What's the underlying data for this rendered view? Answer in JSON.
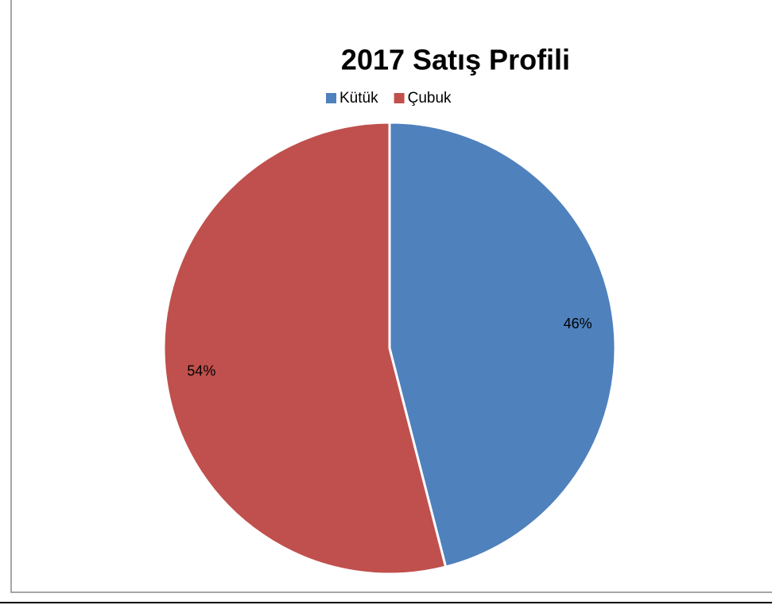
{
  "chart_data": {
    "type": "pie",
    "title": "2017 Satış Profili",
    "categories": [
      "Kütük",
      "Çubuk"
    ],
    "values": [
      46,
      54
    ],
    "value_labels": [
      "46%",
      "54%"
    ],
    "colors": [
      "#4f81bd",
      "#c0504d"
    ],
    "legend": "top"
  }
}
